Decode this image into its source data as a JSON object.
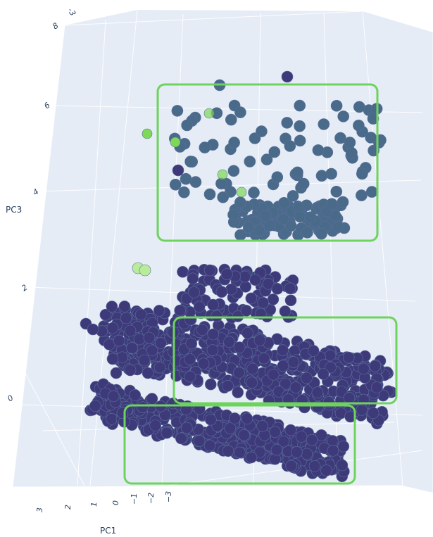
{
  "chart_data": {
    "type": "scatter",
    "dimensions": "3d",
    "axes": {
      "z": {
        "label": "PC3",
        "ticks": [
          "0",
          "2",
          "4",
          "6",
          "8"
        ]
      },
      "x": {
        "label": "PC1",
        "ticks": [
          "3",
          "2",
          "1",
          "0",
          "−1",
          "−2",
          "−3"
        ]
      },
      "y_ticks_visible": [
        "-3"
      ]
    },
    "grid": true,
    "legend": "none",
    "colors": {
      "background": "#e5ecf6",
      "grid": "#ffffff",
      "cluster_main": "#3e3a7a",
      "cluster_top": "#4a6a8a",
      "outlier_green": "#7ed957",
      "outlier_light": "#b8ec9a",
      "highlight_box": "#6ed35c"
    },
    "clusters": [
      {
        "id": "top-cluster",
        "pc3_range": [
          3.6,
          6.6
        ],
        "color": "cluster_top",
        "approx_points": 180
      },
      {
        "id": "middle-band",
        "pc3_range": [
          0.6,
          2.4
        ],
        "color": "cluster_main",
        "approx_points": 520
      },
      {
        "id": "bottom-band",
        "pc3_range": [
          -0.8,
          0.2
        ],
        "color": "cluster_main",
        "approx_points": 420
      }
    ],
    "highlight_boxes": [
      "top-cluster",
      "middle-band",
      "bottom-band"
    ]
  }
}
